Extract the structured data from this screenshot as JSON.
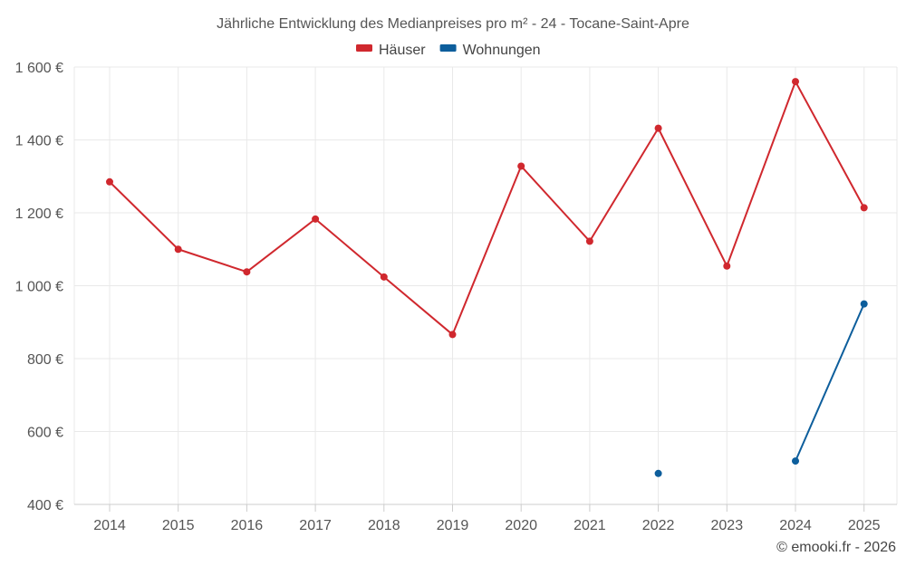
{
  "chart_data": {
    "type": "line",
    "title": "Jährliche Entwicklung des Medianpreises pro m² - 24 - Tocane-Saint-Apre",
    "categories": [
      "2014",
      "2015",
      "2016",
      "2017",
      "2018",
      "2019",
      "2020",
      "2021",
      "2022",
      "2023",
      "2024",
      "2025"
    ],
    "ylim": [
      400,
      1600
    ],
    "yticks": [
      400,
      600,
      800,
      1000,
      1200,
      1400,
      1600
    ],
    "ytick_labels": [
      "400 €",
      "600 €",
      "800 €",
      "1 000 €",
      "1 200 €",
      "1 400 €",
      "1 600 €"
    ],
    "xlabel": "",
    "ylabel": "",
    "grid": true,
    "legend_position": "top-center",
    "series": [
      {
        "name": "Häuser",
        "color": "#d0282e",
        "values": [
          1285,
          1100,
          1038,
          1183,
          1024,
          866,
          1328,
          1122,
          1432,
          1054,
          1560,
          1214
        ]
      },
      {
        "name": "Wohnungen",
        "color": "#0d5e9c",
        "values": [
          null,
          null,
          null,
          null,
          null,
          null,
          null,
          null,
          485,
          null,
          519,
          950
        ]
      }
    ]
  },
  "credit": "© emooki.fr - 2026"
}
